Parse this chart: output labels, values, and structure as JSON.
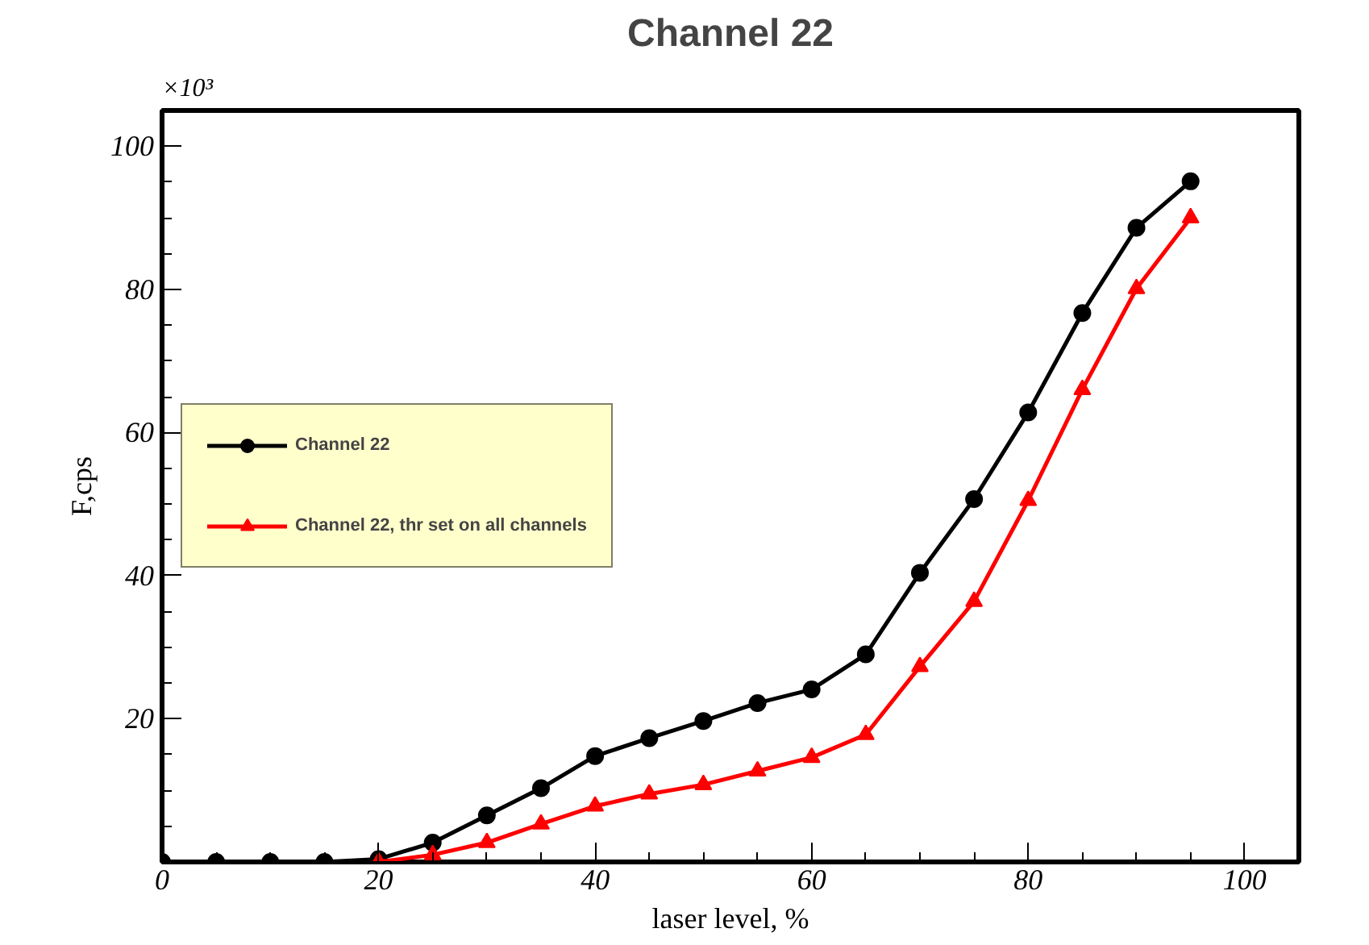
{
  "chart_data": {
    "type": "line",
    "title": "Channel 22",
    "xlabel": "laser level, %",
    "ylabel": "F,cps",
    "annotations": [
      "×10³"
    ],
    "x": [
      0,
      5,
      10,
      15,
      20,
      25,
      30,
      35,
      40,
      45,
      50,
      55,
      60,
      65,
      70,
      75,
      80,
      85,
      90,
      95
    ],
    "series": [
      {
        "name": "Channel 22",
        "color": "#000000",
        "marker": "circle",
        "values": [
          0,
          0,
          0,
          0,
          0.4,
          2.7,
          6.5,
          10.3,
          14.8,
          17.3,
          19.7,
          22.2,
          24.1,
          29,
          40.4,
          50.7,
          62.8,
          76.7,
          88.6,
          95.1
        ]
      },
      {
        "name": "Channel 22, thr set on all channels",
        "color": "#ff0000",
        "marker": "triangle",
        "values": [
          null,
          null,
          null,
          null,
          0,
          1,
          2.7,
          5.3,
          7.8,
          9.5,
          10.8,
          12.7,
          14.6,
          17.8,
          27.3,
          36.4,
          50.5,
          66,
          80.1,
          90
        ]
      }
    ],
    "xlim": [
      0,
      105
    ],
    "ylim": [
      0,
      105
    ],
    "xticks": [
      0,
      20,
      40,
      60,
      80,
      100
    ],
    "yticks": [
      20,
      40,
      60,
      80,
      100
    ],
    "grid": false,
    "legend": "left",
    "line_style": "solid"
  }
}
